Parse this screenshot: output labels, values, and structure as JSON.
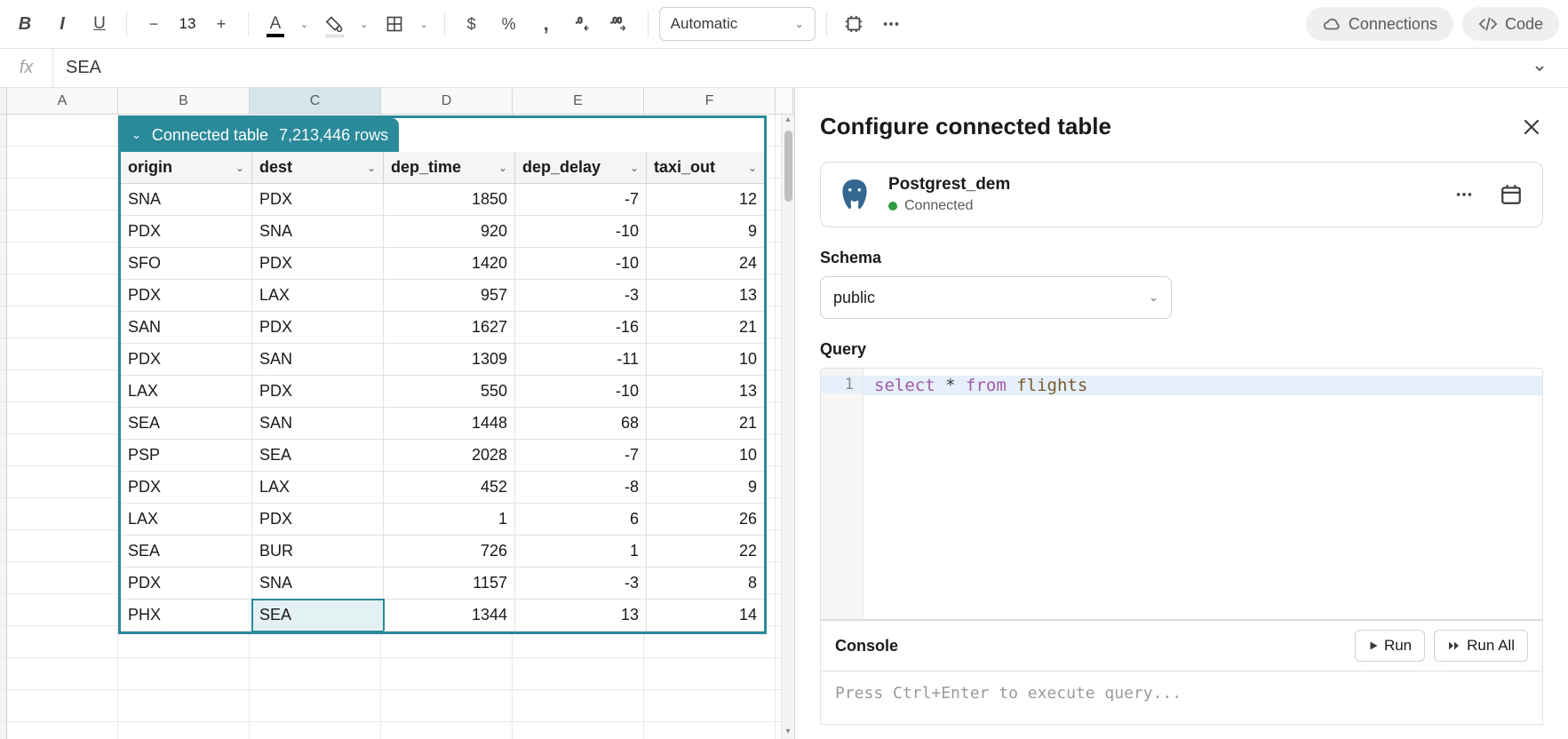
{
  "toolbar": {
    "font_size": "13",
    "auto_label": "Automatic",
    "connections_label": "Connections",
    "code_label": "Code",
    "text_color_underline": "#000000",
    "fill_color_underline": "#ffffff"
  },
  "formula_bar": {
    "fx_label": "fx",
    "value": "SEA"
  },
  "sheet": {
    "columns": [
      "A",
      "B",
      "C",
      "D",
      "E",
      "F"
    ],
    "selected_col_index": 2
  },
  "connected_table": {
    "title": "Connected table",
    "row_count_label": "7,213,446 rows",
    "columns": [
      "origin",
      "dest",
      "dep_time",
      "dep_delay",
      "taxi_out"
    ],
    "rows": [
      [
        "SNA",
        "PDX",
        "1850",
        "-7",
        "12"
      ],
      [
        "PDX",
        "SNA",
        "920",
        "-10",
        "9"
      ],
      [
        "SFO",
        "PDX",
        "1420",
        "-10",
        "24"
      ],
      [
        "PDX",
        "LAX",
        "957",
        "-3",
        "13"
      ],
      [
        "SAN",
        "PDX",
        "1627",
        "-16",
        "21"
      ],
      [
        "PDX",
        "SAN",
        "1309",
        "-11",
        "10"
      ],
      [
        "LAX",
        "PDX",
        "550",
        "-10",
        "13"
      ],
      [
        "SEA",
        "SAN",
        "1448",
        "68",
        "21"
      ],
      [
        "PSP",
        "SEA",
        "2028",
        "-7",
        "10"
      ],
      [
        "PDX",
        "LAX",
        "452",
        "-8",
        "9"
      ],
      [
        "LAX",
        "PDX",
        "1",
        "6",
        "26"
      ],
      [
        "SEA",
        "BUR",
        "726",
        "1",
        "22"
      ],
      [
        "PDX",
        "SNA",
        "1157",
        "-3",
        "8"
      ],
      [
        "PHX",
        "SEA",
        "1344",
        "13",
        "14"
      ]
    ],
    "selected_row": 13,
    "selected_col": 1,
    "accent_color": "#2a8a9a"
  },
  "panel": {
    "title": "Configure connected table",
    "connection": {
      "name": "Postgrest_dem",
      "status_label": "Connected"
    },
    "schema_label": "Schema",
    "schema_value": "public",
    "query_label": "Query",
    "query_tokens": {
      "select": "select",
      "star": "*",
      "from": "from",
      "table": "flights"
    },
    "console_label": "Console",
    "run_label": "Run",
    "runall_label": "Run All",
    "console_placeholder": "Press Ctrl+Enter to execute query..."
  }
}
